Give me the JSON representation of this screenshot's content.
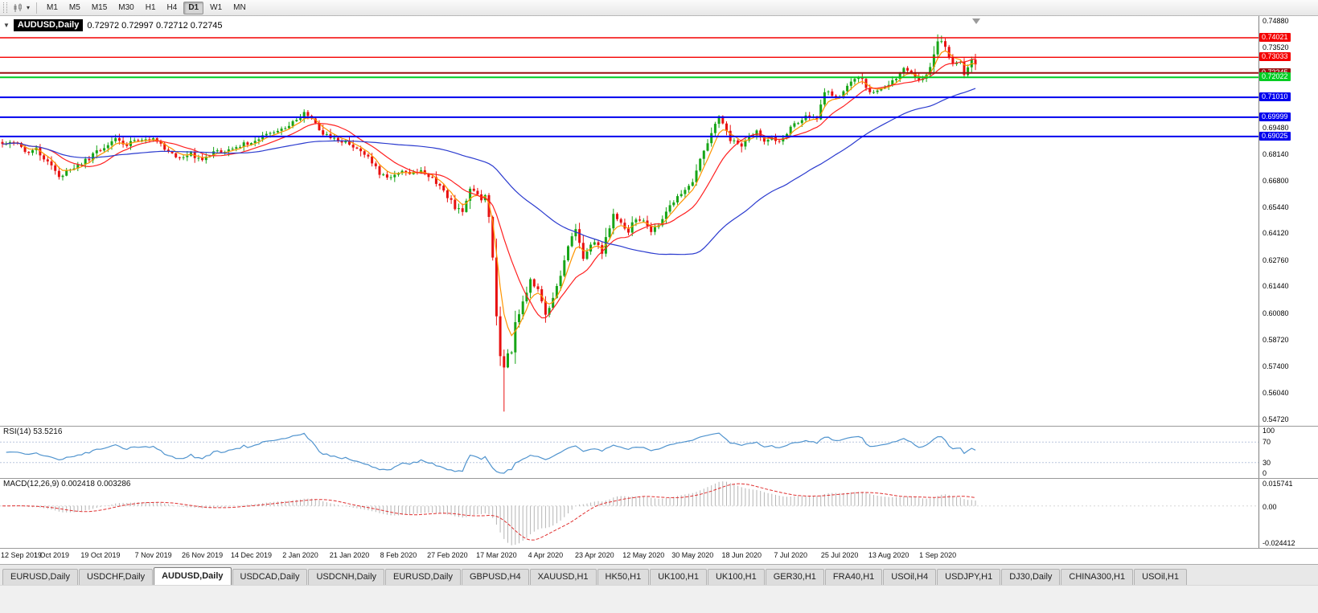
{
  "toolbar": {
    "timeframes": [
      "M1",
      "M5",
      "M15",
      "M30",
      "H1",
      "H4",
      "D1",
      "W1",
      "MN"
    ],
    "active_timeframe": "D1"
  },
  "icons": {
    "one_click_arrow": "▼",
    "dropdown_caret": "▾"
  },
  "chart": {
    "symbol_title": "AUDUSD,Daily",
    "ohlc": "0.72972 0.72997 0.72712 0.72745",
    "price_range": {
      "top": 0.7512,
      "bottom": 0.5438
    },
    "axis_ticks": [
      {
        "label": "0.74880",
        "value": 0.7488
      },
      {
        "label": "0.73520",
        "value": 0.7352
      },
      {
        "label": "0.69480",
        "value": 0.6948
      },
      {
        "label": "0.68140",
        "value": 0.6814
      },
      {
        "label": "0.66800",
        "value": 0.668
      },
      {
        "label": "0.65440",
        "value": 0.6544
      },
      {
        "label": "0.64120",
        "value": 0.6412
      },
      {
        "label": "0.62760",
        "value": 0.6276
      },
      {
        "label": "0.61440",
        "value": 0.6144
      },
      {
        "label": "0.60080",
        "value": 0.6008
      },
      {
        "label": "0.58720",
        "value": 0.5872
      },
      {
        "label": "0.57400",
        "value": 0.574
      },
      {
        "label": "0.56040",
        "value": 0.5604
      },
      {
        "label": "0.54720",
        "value": 0.5472
      }
    ],
    "levels": [
      {
        "label": "0.74021",
        "price": 0.74021,
        "color": "#F40000",
        "width": 1.4
      },
      {
        "label": "0.73033",
        "price": 0.73033,
        "color": "#F40000",
        "width": 1.4
      },
      {
        "label": "0.72245",
        "price": 0.72245,
        "color": "#991111",
        "width": 2
      },
      {
        "label": "0.72022",
        "price": 0.72022,
        "color": "#00CC22",
        "width": 2
      },
      {
        "label": "0.71010",
        "price": 0.7101,
        "color": "#0000EE",
        "width": 2
      },
      {
        "label": "0.69999",
        "price": 0.69999,
        "color": "#0000EE",
        "width": 2
      },
      {
        "label": "0.69025",
        "price": 0.69025,
        "color": "#0000EE",
        "width": 2
      }
    ],
    "colors": {
      "up": "#17A517",
      "down": "#E81010",
      "ma_fast": "#FF9500",
      "ma_mid": "#FF2020",
      "ma_slow": "#2B3BCF",
      "rsi": "#4F93CE",
      "macd_hist": "#B5B5B5",
      "macd_signal": "#E03030"
    }
  },
  "chart_data": {
    "type": "candlestick",
    "symbol": "AUDUSD",
    "timeframe": "Daily",
    "num_candles": 259,
    "close_anchors": [
      [
        0,
        0.6865
      ],
      [
        3,
        0.688
      ],
      [
        6,
        0.682
      ],
      [
        9,
        0.6835
      ],
      [
        13,
        0.676
      ],
      [
        15,
        0.669
      ],
      [
        17,
        0.672
      ],
      [
        20,
        0.6755
      ],
      [
        23,
        0.679
      ],
      [
        26,
        0.684
      ],
      [
        30,
        0.6885
      ],
      [
        33,
        0.686
      ],
      [
        36,
        0.689
      ],
      [
        40,
        0.6895
      ],
      [
        43,
        0.6845
      ],
      [
        46,
        0.6795
      ],
      [
        50,
        0.681
      ],
      [
        53,
        0.6785
      ],
      [
        56,
        0.682
      ],
      [
        60,
        0.684
      ],
      [
        63,
        0.6855
      ],
      [
        66,
        0.688
      ],
      [
        70,
        0.6905
      ],
      [
        73,
        0.6935
      ],
      [
        76,
        0.6965
      ],
      [
        79,
        0.7
      ],
      [
        80,
        0.702
      ],
      [
        82,
        0.6985
      ],
      [
        84,
        0.694
      ],
      [
        86,
        0.6905
      ],
      [
        89,
        0.6885
      ],
      [
        92,
        0.6865
      ],
      [
        95,
        0.6835
      ],
      [
        98,
        0.677
      ],
      [
        100,
        0.672
      ],
      [
        103,
        0.67
      ],
      [
        105,
        0.6725
      ],
      [
        108,
        0.6715
      ],
      [
        111,
        0.6735
      ],
      [
        114,
        0.669
      ],
      [
        116,
        0.6655
      ],
      [
        118,
        0.66
      ],
      [
        120,
        0.6545
      ],
      [
        122,
        0.6515
      ],
      [
        124,
        0.664
      ],
      [
        126,
        0.662
      ],
      [
        127,
        0.658
      ],
      [
        128,
        0.661
      ],
      [
        129,
        0.649
      ],
      [
        130,
        0.629
      ],
      [
        131,
        0.599
      ],
      [
        132,
        0.578
      ],
      [
        133,
        0.574
      ],
      [
        134,
        0.58
      ],
      [
        135,
        0.582
      ],
      [
        136,
        0.596
      ],
      [
        138,
        0.606
      ],
      [
        140,
        0.617
      ],
      [
        142,
        0.613
      ],
      [
        144,
        0.6
      ],
      [
        146,
        0.608
      ],
      [
        148,
        0.619
      ],
      [
        150,
        0.635
      ],
      [
        152,
        0.644
      ],
      [
        154,
        0.629
      ],
      [
        157,
        0.637
      ],
      [
        159,
        0.632
      ],
      [
        162,
        0.651
      ],
      [
        164,
        0.646
      ],
      [
        166,
        0.6425
      ],
      [
        168,
        0.649
      ],
      [
        170,
        0.647
      ],
      [
        172,
        0.6415
      ],
      [
        174,
        0.646
      ],
      [
        176,
        0.653
      ],
      [
        178,
        0.656
      ],
      [
        180,
        0.662
      ],
      [
        183,
        0.666
      ],
      [
        185,
        0.678
      ],
      [
        188,
        0.692
      ],
      [
        190,
        0.7
      ],
      [
        191,
        0.696
      ],
      [
        193,
        0.688
      ],
      [
        196,
        0.6855
      ],
      [
        198,
        0.691
      ],
      [
        200,
        0.693
      ],
      [
        202,
        0.688
      ],
      [
        204,
        0.69
      ],
      [
        206,
        0.687
      ],
      [
        209,
        0.6945
      ],
      [
        211,
        0.698
      ],
      [
        214,
        0.701
      ],
      [
        216,
        0.699
      ],
      [
        218,
        0.713
      ],
      [
        220,
        0.711
      ],
      [
        222,
        0.71
      ],
      [
        224,
        0.715
      ],
      [
        226,
        0.7195
      ],
      [
        228,
        0.719
      ],
      [
        230,
        0.712
      ],
      [
        232,
        0.7145
      ],
      [
        235,
        0.716
      ],
      [
        237,
        0.72
      ],
      [
        239,
        0.724
      ],
      [
        241,
        0.723
      ],
      [
        243,
        0.718
      ],
      [
        245,
        0.722
      ],
      [
        247,
        0.731
      ],
      [
        248,
        0.7375
      ],
      [
        249,
        0.7395
      ],
      [
        250,
        0.7345
      ],
      [
        251,
        0.73
      ],
      [
        252,
        0.727
      ],
      [
        253,
        0.7285
      ],
      [
        254,
        0.728
      ],
      [
        255,
        0.721
      ],
      [
        256,
        0.725
      ],
      [
        257,
        0.728
      ],
      [
        258,
        0.7275
      ]
    ],
    "wick_overrides": [
      {
        "i": 133,
        "low": 0.551
      },
      {
        "i": 249,
        "high": 0.7413
      }
    ],
    "date_labels": [
      {
        "i": 0,
        "label": "12 Sep 2019"
      },
      {
        "i": 13,
        "label": "1 Oct 2019"
      },
      {
        "i": 26,
        "label": "19 Oct 2019"
      },
      {
        "i": 40,
        "label": "7 Nov 2019"
      },
      {
        "i": 53,
        "label": "26 Nov 2019"
      },
      {
        "i": 66,
        "label": "14 Dec 2019"
      },
      {
        "i": 79,
        "label": "2 Jan 2020"
      },
      {
        "i": 92,
        "label": "21 Jan 2020"
      },
      {
        "i": 105,
        "label": "8 Feb 2020"
      },
      {
        "i": 118,
        "label": "27 Feb 2020"
      },
      {
        "i": 131,
        "label": "17 Mar 2020"
      },
      {
        "i": 144,
        "label": "4 Apr 2020"
      },
      {
        "i": 157,
        "label": "23 Apr 2020"
      },
      {
        "i": 170,
        "label": "12 May 2020"
      },
      {
        "i": 183,
        "label": "30 May 2020"
      },
      {
        "i": 196,
        "label": "18 Jun 2020"
      },
      {
        "i": 209,
        "label": "7 Jul 2020"
      },
      {
        "i": 222,
        "label": "25 Jul 2020"
      },
      {
        "i": 235,
        "label": "13 Aug 2020"
      },
      {
        "i": 248,
        "label": "1 Sep 2020"
      }
    ],
    "moving_averages": [
      {
        "type": "ema",
        "period": 5,
        "color_key": "ma_fast"
      },
      {
        "type": "sma",
        "period": 13,
        "color_key": "ma_mid"
      },
      {
        "type": "sma",
        "period": 55,
        "color_key": "ma_slow"
      }
    ],
    "rsi": {
      "label": "RSI(14) 53.5216",
      "period": 14,
      "current": 53.5216,
      "levels": [
        70,
        30
      ],
      "axis_labels": [
        "100",
        "70",
        "30",
        "0"
      ]
    },
    "macd": {
      "label": "MACD(12,26,9) 0.002418 0.003286",
      "fast": 12,
      "slow": 26,
      "signal": 9,
      "current_values": [
        0.002418,
        0.003286
      ],
      "axis_labels": {
        "max": "0.015741",
        "zero": "0.00",
        "min": "-0.024412"
      },
      "range": {
        "max": 0.015741,
        "min": -0.024412
      }
    }
  },
  "tabs": {
    "items": [
      {
        "label": "EURUSD,Daily",
        "active": false
      },
      {
        "label": "USDCHF,Daily",
        "active": false
      },
      {
        "label": "AUDUSD,Daily",
        "active": true
      },
      {
        "label": "USDCAD,Daily",
        "active": false
      },
      {
        "label": "USDCNH,Daily",
        "active": false
      },
      {
        "label": "EURUSD,Daily",
        "active": false
      },
      {
        "label": "GBPUSD,H4",
        "active": false
      },
      {
        "label": "XAUUSD,H1",
        "active": false
      },
      {
        "label": "HK50,H1",
        "active": false
      },
      {
        "label": "UK100,H1",
        "active": false
      },
      {
        "label": "UK100,H1",
        "active": false
      },
      {
        "label": "GER30,H1",
        "active": false
      },
      {
        "label": "FRA40,H1",
        "active": false
      },
      {
        "label": "USOil,H4",
        "active": false
      },
      {
        "label": "USDJPY,H1",
        "active": false
      },
      {
        "label": "DJ30,Daily",
        "active": false
      },
      {
        "label": "CHINA300,H1",
        "active": false
      },
      {
        "label": "USOil,H1",
        "active": false
      }
    ]
  }
}
